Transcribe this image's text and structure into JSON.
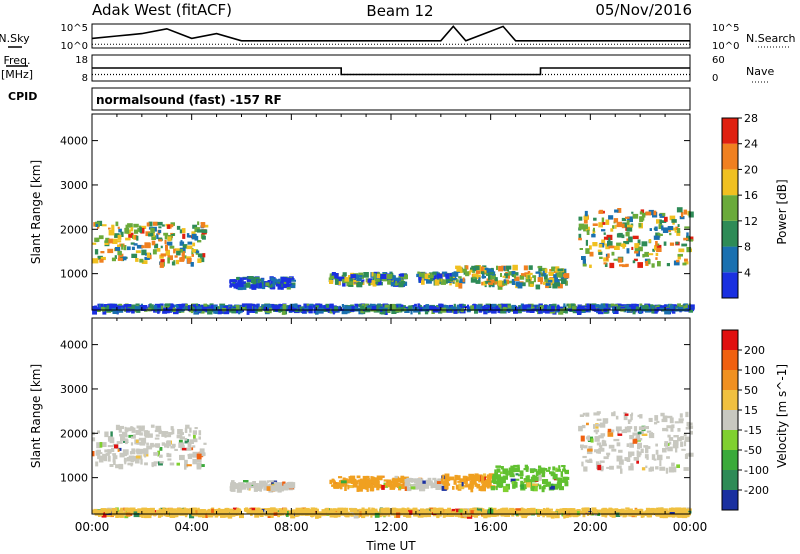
{
  "header": {
    "station": "Adak West (fitACF)",
    "beam": "Beam 12",
    "date": "05/Nov/2016"
  },
  "labels": {
    "nsky": "N.Sky",
    "nsearch": "N.Search",
    "freq": "Freq.",
    "mhz": "[MHz]",
    "nave": "Nave",
    "cpid": "CPID",
    "cpid_value": "normalsound (fast) -157 RF"
  },
  "chart_data": [
    {
      "type": "line",
      "panel": "noise",
      "left_ticks": [
        "10^5",
        "10^0"
      ],
      "right_ticks": [
        "10^5",
        "10^0"
      ],
      "series": [
        {
          "name": "N.Sky",
          "style": "solid",
          "x": [
            0,
            1,
            2,
            3,
            4,
            5,
            6,
            8,
            10,
            12,
            14,
            14.5,
            15,
            16,
            16.5,
            17,
            18,
            20,
            22,
            24
          ],
          "y": [
            2,
            2.5,
            3,
            4,
            2,
            3,
            1.5,
            1.5,
            1.5,
            1.5,
            1.5,
            4.5,
            1.5,
            3.5,
            4.5,
            1.5,
            1.5,
            1.5,
            1.5,
            1.5
          ]
        },
        {
          "name": "N.Search",
          "style": "dotted",
          "x": [
            0,
            24
          ],
          "y": [
            0.8,
            0.8
          ]
        }
      ]
    },
    {
      "type": "line",
      "panel": "frequency",
      "left_ticks": [
        "18",
        "8"
      ],
      "right_ticks": [
        "60",
        "0"
      ],
      "series": [
        {
          "name": "Freq.",
          "style": "solid",
          "x": [
            0,
            10,
            10,
            18,
            18,
            24
          ],
          "y": [
            13,
            13,
            10.5,
            10.5,
            13,
            13
          ]
        },
        {
          "name": "Nave",
          "style": "dotted",
          "x": [
            0,
            24
          ],
          "y": [
            10.5,
            10.5
          ]
        }
      ]
    },
    {
      "type": "heatmap",
      "panel": "power",
      "xlabel": "",
      "ylabel": "Slant Range [km]",
      "xlim": [
        0,
        24
      ],
      "ylim": [
        180,
        4600
      ],
      "yticks": [
        1000,
        2000,
        3000,
        4000
      ],
      "colorbar": {
        "label": "Power [dB]",
        "ticks": [
          "4",
          "8",
          "12",
          "16",
          "20",
          "24",
          "28"
        ],
        "colors": [
          "#1a30e0",
          "#1a70b0",
          "#2e8b57",
          "#6aaa3a",
          "#f0c020",
          "#f08020",
          "#e02010"
        ]
      },
      "regions": [
        {
          "t0": 0.0,
          "t1": 4.5,
          "r0": 1250,
          "r1": 2200,
          "level": 0.55
        },
        {
          "t0": 5.5,
          "t1": 8.0,
          "r0": 750,
          "r1": 950,
          "level": 0.15
        },
        {
          "t0": 9.5,
          "t1": 12.5,
          "r0": 800,
          "r1": 1050,
          "level": 0.35
        },
        {
          "t0": 13.0,
          "t1": 14.5,
          "r0": 850,
          "r1": 1050,
          "level": 0.35
        },
        {
          "t0": 14.5,
          "t1": 19.0,
          "r0": 750,
          "r1": 1200,
          "level": 0.5
        },
        {
          "t0": 19.5,
          "t1": 24.0,
          "r0": 1200,
          "r1": 2500,
          "level": 0.55
        },
        {
          "t0": 0.0,
          "t1": 24.0,
          "r0": 200,
          "r1": 330,
          "level": 0.2
        }
      ]
    },
    {
      "type": "heatmap",
      "panel": "velocity",
      "xlabel": "Time UT",
      "ylabel": "Slant Range [km]",
      "xlim": [
        0,
        24
      ],
      "ylim": [
        180,
        4600
      ],
      "xticks": [
        "00:00",
        "04:00",
        "08:00",
        "12:00",
        "16:00",
        "20:00",
        "00:00"
      ],
      "yticks": [
        1000,
        2000,
        3000,
        4000
      ],
      "colorbar": {
        "label": "Velocity [m s^-1]",
        "ticks": [
          "200",
          "100",
          "50",
          "15",
          "-15",
          "-50",
          "-100",
          "-200"
        ],
        "colors": [
          "#1a30a0",
          "#2e8b57",
          "#3aaa3a",
          "#80d030",
          "#c8c8c0",
          "#f0c040",
          "#f09020",
          "#f06010",
          "#e01010"
        ]
      },
      "regions": [
        {
          "t0": 0.0,
          "t1": 4.5,
          "r0": 1300,
          "r1": 2200,
          "color": "#c8c8c0"
        },
        {
          "t0": 5.5,
          "t1": 8.0,
          "r0": 780,
          "r1": 950,
          "color": "#c8c8c0"
        },
        {
          "t0": 9.5,
          "t1": 12.5,
          "r0": 800,
          "r1": 1050,
          "color": "#f0a020"
        },
        {
          "t0": 12.5,
          "t1": 14.0,
          "r0": 800,
          "r1": 1000,
          "color": "#c8c8c0"
        },
        {
          "t0": 14.0,
          "t1": 16.0,
          "r0": 800,
          "r1": 1100,
          "color": "#f0a020"
        },
        {
          "t0": 16.0,
          "t1": 19.0,
          "r0": 800,
          "r1": 1300,
          "color": "#60c030"
        },
        {
          "t0": 19.5,
          "t1": 24.0,
          "r0": 1200,
          "r1": 2500,
          "color": "#c8c8c0"
        },
        {
          "t0": 0.0,
          "t1": 24.0,
          "r0": 200,
          "r1": 330,
          "color": "#f0c040"
        }
      ]
    }
  ]
}
